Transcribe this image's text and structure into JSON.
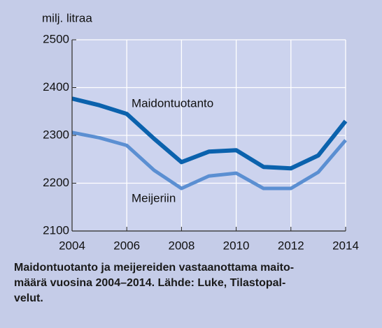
{
  "chart_data": {
    "type": "line",
    "y_label": "milj. litraa",
    "x": [
      2004,
      2005,
      2006,
      2007,
      2008,
      2009,
      2010,
      2011,
      2012,
      2013,
      2014
    ],
    "series": [
      {
        "name": "Maidontuotanto",
        "color": "#0b62ad",
        "values": [
          2377,
          2363,
          2345,
          2293,
          2244,
          2266,
          2269,
          2234,
          2231,
          2258,
          2330
        ]
      },
      {
        "name": "Meijeriin",
        "color": "#5b8fd2",
        "values": [
          2306,
          2295,
          2279,
          2227,
          2189,
          2215,
          2221,
          2189,
          2189,
          2223,
          2290
        ]
      }
    ],
    "xlim": [
      2004,
      2014
    ],
    "xticks": [
      2004,
      2006,
      2008,
      2010,
      2012,
      2014
    ],
    "ylim": [
      2100,
      2500
    ],
    "yticks": [
      2100,
      2200,
      2300,
      2400,
      2500
    ],
    "grid": true,
    "caption": [
      "Maidontuotanto ja meijereiden vastaanottama maito-",
      "määrä vuosina 2004–2014. Lähde: Luke, Tilastopal-",
      "velut."
    ]
  }
}
